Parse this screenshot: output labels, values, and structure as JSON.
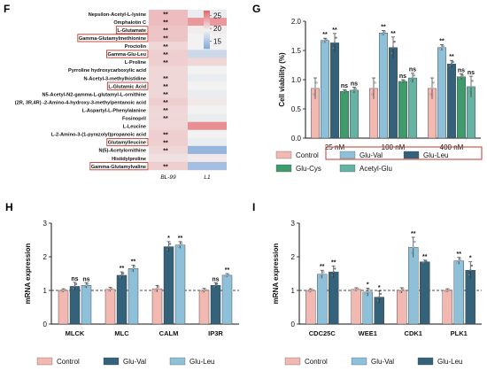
{
  "colors": {
    "control": "#f2b8b2",
    "glu_val": "#33627a",
    "glu_leu": "#8ec1d9",
    "glu_cys": "#3f9a6c",
    "acetyl_glu": "#66b3a4",
    "heat_high": "#e46b70",
    "heat_mid": "#f2f2f2",
    "heat_low": "#7fa6d8",
    "highlight_box": "#c0392b"
  },
  "panels": {
    "F": "F",
    "G": "G",
    "H": "H",
    "I": "I"
  },
  "chart_data": [
    {
      "panel": "F",
      "type": "heatmap",
      "columns": [
        "BL-99",
        "L1"
      ],
      "rows": [
        {
          "name": "Nepsilon-Acetyl-L-lysine",
          "values": [
            22.5,
            19.0
          ],
          "sig": [
            "**",
            ""
          ],
          "boxed": false
        },
        {
          "name": "Omphalotin C",
          "values": [
            22.5,
            24.5
          ],
          "sig": [
            "**",
            ""
          ],
          "boxed": false
        },
        {
          "name": "L-Glutamate",
          "values": [
            22.0,
            19.8
          ],
          "sig": [
            "**",
            ""
          ],
          "boxed": true
        },
        {
          "name": "Gamma-Glutamylmethionine",
          "values": [
            22.0,
            19.5
          ],
          "sig": [
            "**",
            ""
          ],
          "boxed": true
        },
        {
          "name": "Proctolin",
          "values": [
            21.0,
            19.5
          ],
          "sig": [
            "**",
            ""
          ],
          "boxed": false
        },
        {
          "name": "Gamma-Glu-Leu",
          "values": [
            21.5,
            17.0
          ],
          "sig": [
            "**",
            ""
          ],
          "boxed": true
        },
        {
          "name": "L-Proline",
          "values": [
            21.5,
            21.0
          ],
          "sig": [
            "**",
            ""
          ],
          "boxed": false
        },
        {
          "name": "Pyrroline hydroxycarboxylic acid",
          "values": [
            21.0,
            19.5
          ],
          "sig": [
            "",
            ""
          ],
          "boxed": false
        },
        {
          "name": "N-Acetyl-3-methylhistidine",
          "values": [
            21.0,
            19.0
          ],
          "sig": [
            "**",
            ""
          ],
          "boxed": false
        },
        {
          "name": "L-Glutamic Acid",
          "values": [
            21.0,
            19.5
          ],
          "sig": [
            "**",
            ""
          ],
          "boxed": true
        },
        {
          "name": "N5-Acetyl-N2-gamma-L-glutamyl-L-ornithine",
          "values": [
            21.0,
            19.0
          ],
          "sig": [
            "**",
            ""
          ],
          "boxed": false
        },
        {
          "name": "(2R, 3R,4R) -2-Amino-4-hydroxy-3-methylpentanoic acid",
          "values": [
            21.5,
            20.0
          ],
          "sig": [
            "**",
            ""
          ],
          "boxed": false
        },
        {
          "name": "L-Aspartyl-L-Phenylalanine",
          "values": [
            21.0,
            19.5
          ],
          "sig": [
            "**",
            ""
          ],
          "boxed": false
        },
        {
          "name": "Fosinopril",
          "values": [
            21.0,
            19.0
          ],
          "sig": [
            "**",
            ""
          ],
          "boxed": false
        },
        {
          "name": "L-Leucine",
          "values": [
            21.0,
            25.0
          ],
          "sig": [
            "",
            ""
          ],
          "boxed": false
        },
        {
          "name": "L-2-Amino-3-(1-pyrazolyl)propanoic acid",
          "values": [
            21.5,
            19.5
          ],
          "sig": [
            "**",
            ""
          ],
          "boxed": false
        },
        {
          "name": "Glutamylleucine",
          "values": [
            21.5,
            19.0
          ],
          "sig": [
            "**",
            ""
          ],
          "boxed": true
        },
        {
          "name": "N(5)-Acetylornithine",
          "values": [
            21.0,
            13.5
          ],
          "sig": [
            "**",
            ""
          ],
          "boxed": false
        },
        {
          "name": "Histidylproline",
          "values": [
            20.5,
            20.0
          ],
          "sig": [
            "",
            ""
          ],
          "boxed": false
        },
        {
          "name": "Gamma-Glutamylvaline",
          "values": [
            21.5,
            14.5
          ],
          "sig": [
            "**",
            ""
          ],
          "boxed": true
        }
      ],
      "colorbar": {
        "ticks": [
          25,
          20,
          15
        ],
        "range": [
          12,
          27
        ]
      }
    },
    {
      "panel": "G",
      "type": "bar",
      "ylabel": "Cell viability (%)",
      "ylim": [
        0,
        2.0
      ],
      "yticks": [
        "0.0",
        "0.5",
        "1.0",
        "1.5",
        "2.0"
      ],
      "categories": [
        "25 nM",
        "100 nM",
        "400 nM"
      ],
      "series": [
        {
          "name": "Control",
          "color_key": "control",
          "values": [
            0.85,
            0.85,
            0.85
          ],
          "err": [
            0.18,
            0.18,
            0.18
          ],
          "sig": [
            "",
            "",
            ""
          ]
        },
        {
          "name": "Glu-Val",
          "color_key": "glu_leu",
          "values": [
            1.67,
            1.8,
            1.55
          ],
          "err": [
            0.04,
            0.04,
            0.05
          ],
          "sig": [
            "**",
            "**",
            "**"
          ]
        },
        {
          "name": "Glu-Leu",
          "color_key": "glu_val",
          "values": [
            1.63,
            1.55,
            1.27
          ],
          "err": [
            0.16,
            0.18,
            0.06
          ],
          "sig": [
            "**",
            "**",
            "**"
          ]
        },
        {
          "name": "Glu-Cys",
          "color_key": "glu_cys",
          "values": [
            0.8,
            0.97,
            1.05
          ],
          "err": [
            0.03,
            0.03,
            0.05
          ],
          "sig": [
            "ns",
            "ns",
            "ns"
          ]
        },
        {
          "name": "Acetyl-Glu",
          "color_key": "acetyl_glu",
          "values": [
            0.82,
            1.03,
            0.88
          ],
          "err": [
            0.05,
            0.08,
            0.18
          ],
          "sig": [
            "ns",
            "ns",
            "ns"
          ]
        }
      ],
      "legend": [
        "Control",
        "Glu-Val",
        "Glu-Leu",
        "Glu-Cys",
        "Acetyl-Glu"
      ],
      "boxed_legend": [
        "Glu-Val",
        "Glu-Leu"
      ]
    },
    {
      "panel": "H",
      "type": "bar",
      "ylabel": "mRNA expression",
      "ylim": [
        0,
        3
      ],
      "yticks": [
        "0",
        "1",
        "2",
        "3"
      ],
      "categories": [
        "MLCK",
        "MLC",
        "CALM",
        "IP3R"
      ],
      "series": [
        {
          "name": "Control",
          "color_key": "control",
          "values": [
            1.0,
            1.03,
            1.05,
            1.0
          ],
          "err": [
            0.05,
            0.06,
            0.1,
            0.06
          ],
          "sig": [
            "",
            "",
            "",
            ""
          ]
        },
        {
          "name": "Glu-Val",
          "color_key": "glu_val",
          "values": [
            1.12,
            1.45,
            2.3,
            1.15
          ],
          "err": [
            0.12,
            0.1,
            0.15,
            0.08
          ],
          "sig": [
            "ns",
            "**",
            "*",
            "ns"
          ]
        },
        {
          "name": "Glu-Leu",
          "color_key": "glu_leu",
          "values": [
            1.15,
            1.65,
            2.35,
            1.45
          ],
          "err": [
            0.08,
            0.1,
            0.1,
            0.05
          ],
          "sig": [
            "ns",
            "**",
            "**",
            "**"
          ]
        }
      ],
      "baseline": 1.0,
      "legend": [
        "Control",
        "Glu-Val",
        "Glu-Leu"
      ]
    },
    {
      "panel": "I",
      "type": "bar",
      "ylabel": "mRNA expression",
      "ylim": [
        0,
        3
      ],
      "yticks": [
        "0",
        "1",
        "2",
        "3"
      ],
      "categories": [
        "CDC25C",
        "WEE1",
        "CDK1",
        "PLK1"
      ],
      "series": [
        {
          "name": "Control",
          "color_key": "control",
          "values": [
            1.0,
            1.03,
            1.0,
            1.0
          ],
          "err": [
            0.05,
            0.05,
            0.08,
            0.05
          ],
          "sig": [
            "",
            "",
            "",
            ""
          ]
        },
        {
          "name": "Glu-Val",
          "color_key": "glu_leu",
          "values": [
            1.48,
            0.95,
            2.28,
            1.88
          ],
          "err": [
            0.12,
            0.12,
            0.3,
            0.1
          ],
          "sig": [
            "**",
            "*",
            "**",
            "**"
          ]
        },
        {
          "name": "Glu-Leu",
          "color_key": "glu_val",
          "values": [
            1.55,
            0.8,
            1.85,
            1.6
          ],
          "err": [
            0.18,
            0.18,
            0.05,
            0.25
          ],
          "sig": [
            "**",
            "*",
            "**",
            "*"
          ]
        }
      ],
      "baseline": 1.0,
      "legend": [
        "Control",
        "Glu-Val",
        "Glu-Leu"
      ]
    }
  ]
}
